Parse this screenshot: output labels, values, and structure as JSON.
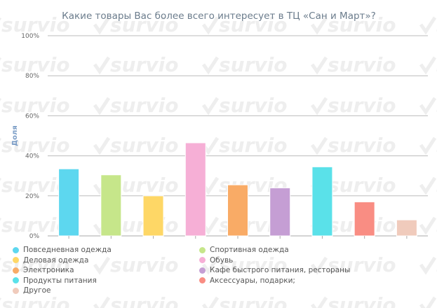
{
  "chart_data": {
    "type": "bar",
    "title": "Какие товары Вас более всего интересует в ТЦ «Сан и Март»?",
    "ylabel": "Доля",
    "ylim": [
      0,
      100
    ],
    "yticks": [
      "0%",
      "20%",
      "40%",
      "60%",
      "80%",
      "100%"
    ],
    "categories": [
      "Повседневная одежда",
      "Спортивная одежда",
      "Деловая одежда",
      "Обувь",
      "Электроника",
      "Кафе быстрого питания, рестораны",
      "Продукты питания",
      "Аксессуары, подарки;",
      "Другое"
    ],
    "values": [
      33.5,
      30.5,
      20,
      46.5,
      25.5,
      24,
      34.5,
      17,
      8
    ],
    "colors": [
      "#5dd7ef",
      "#c6e68a",
      "#fed766",
      "#f6afd6",
      "#f9ab66",
      "#c59ed4",
      "#5ae1e9",
      "#f98d83",
      "#f0cbbc"
    ],
    "legend_placement": "bottom",
    "grid": true
  },
  "watermark": {
    "text": "survio"
  }
}
